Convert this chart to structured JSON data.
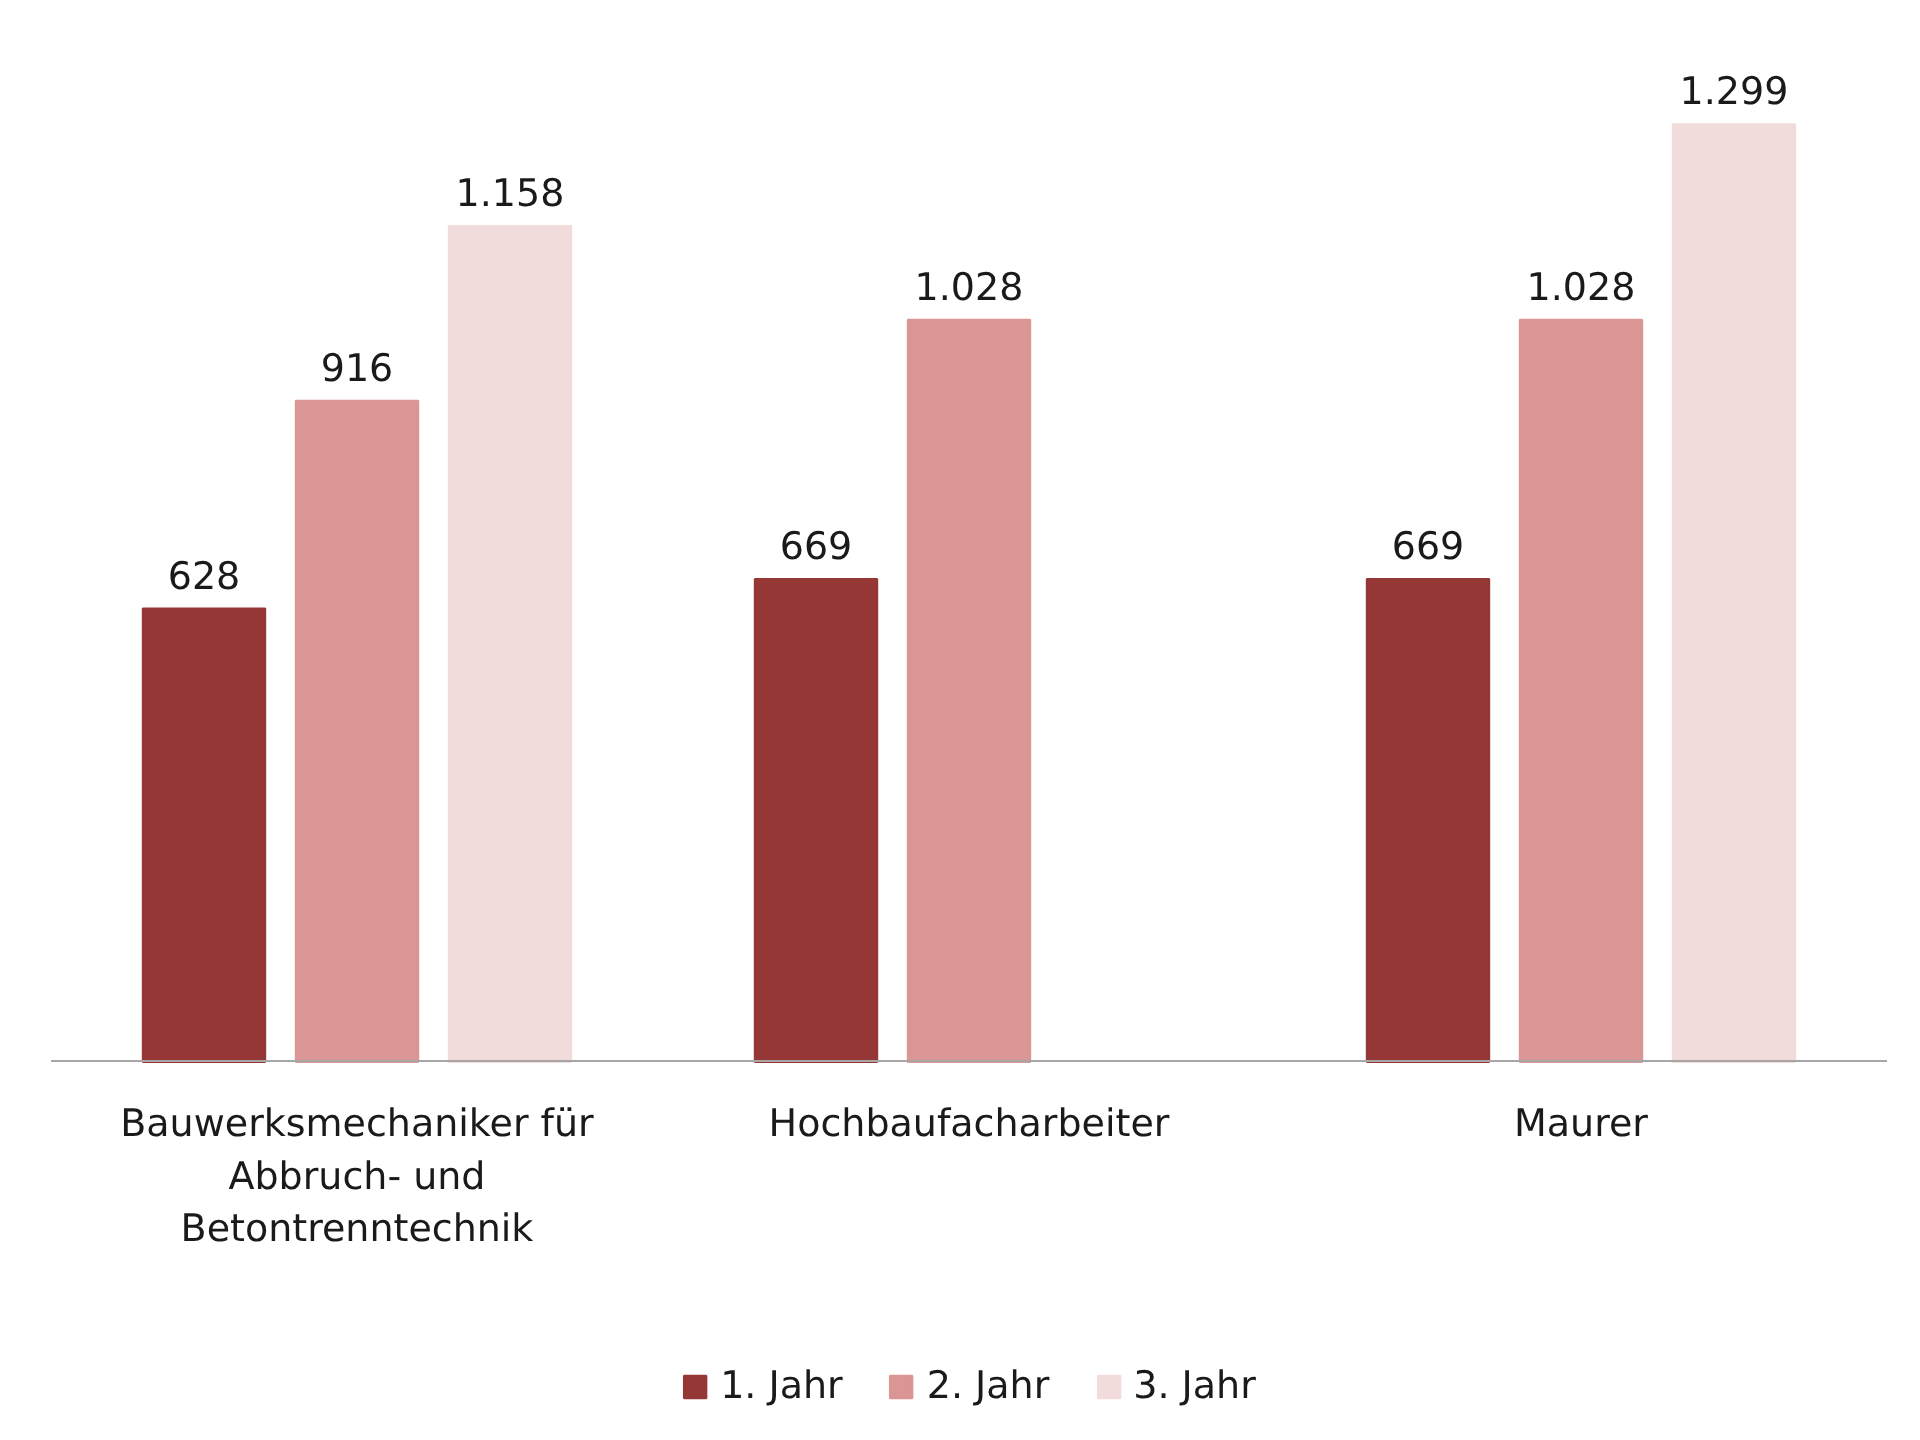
{
  "chart_data": {
    "type": "bar",
    "categories": [
      "Bauwerksmechaniker für Abbruch- und Betontrenntechnik",
      "Hochbaufacharbeiter",
      "Maurer"
    ],
    "series": [
      {
        "name": "1. Jahr",
        "color": "#953735",
        "values": [
          628,
          669,
          669
        ],
        "value_labels": [
          "628",
          "669",
          "669"
        ]
      },
      {
        "name": "2. Jahr",
        "color": "#d99694",
        "values": [
          916,
          1028,
          1028
        ],
        "value_labels": [
          "916",
          "1.028",
          "1.028"
        ]
      },
      {
        "name": "3. Jahr",
        "color": "#f2dcdb",
        "values": [
          1158,
          null,
          1299
        ],
        "value_labels": [
          "1.158",
          null,
          "1.299"
        ]
      }
    ],
    "legend": "bottom",
    "tick_labels": "x",
    "grid": false
  }
}
